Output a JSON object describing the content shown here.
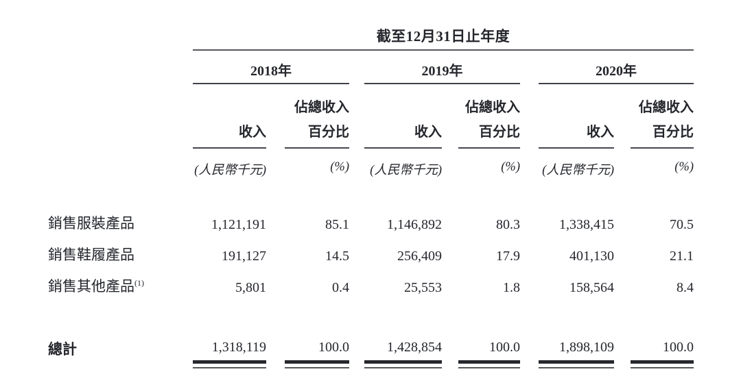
{
  "page": {
    "background_color": "#ffffff",
    "text_color": "#24262c",
    "rule_color": "#4c4e54",
    "total_rule_color": "#26282e"
  },
  "table": {
    "title": "截至12月31日止年度",
    "years": [
      "2018年",
      "2019年",
      "2020年"
    ],
    "col_headers": {
      "share_top": "佔總收入",
      "revenue": "收入",
      "share_bottom": "百分比",
      "revenue_unit": "(人民幣千元)",
      "share_unit": "(%)"
    },
    "rows": [
      {
        "label": "銷售服裝產品",
        "footnote": "",
        "values": [
          "1,121,191",
          "85.1",
          "1,146,892",
          "80.3",
          "1,338,415",
          "70.5"
        ]
      },
      {
        "label": "銷售鞋履產品",
        "footnote": "",
        "values": [
          "191,127",
          "14.5",
          "256,409",
          "17.9",
          "401,130",
          "21.1"
        ]
      },
      {
        "label": "銷售其他產品",
        "footnote": "(1)",
        "values": [
          "5,801",
          "0.4",
          "25,553",
          "1.8",
          "158,564",
          "8.4"
        ]
      }
    ],
    "total": {
      "label": "總計",
      "values": [
        "1,318,119",
        "100.0",
        "1,428,854",
        "100.0",
        "1,898,109",
        "100.0"
      ]
    }
  }
}
